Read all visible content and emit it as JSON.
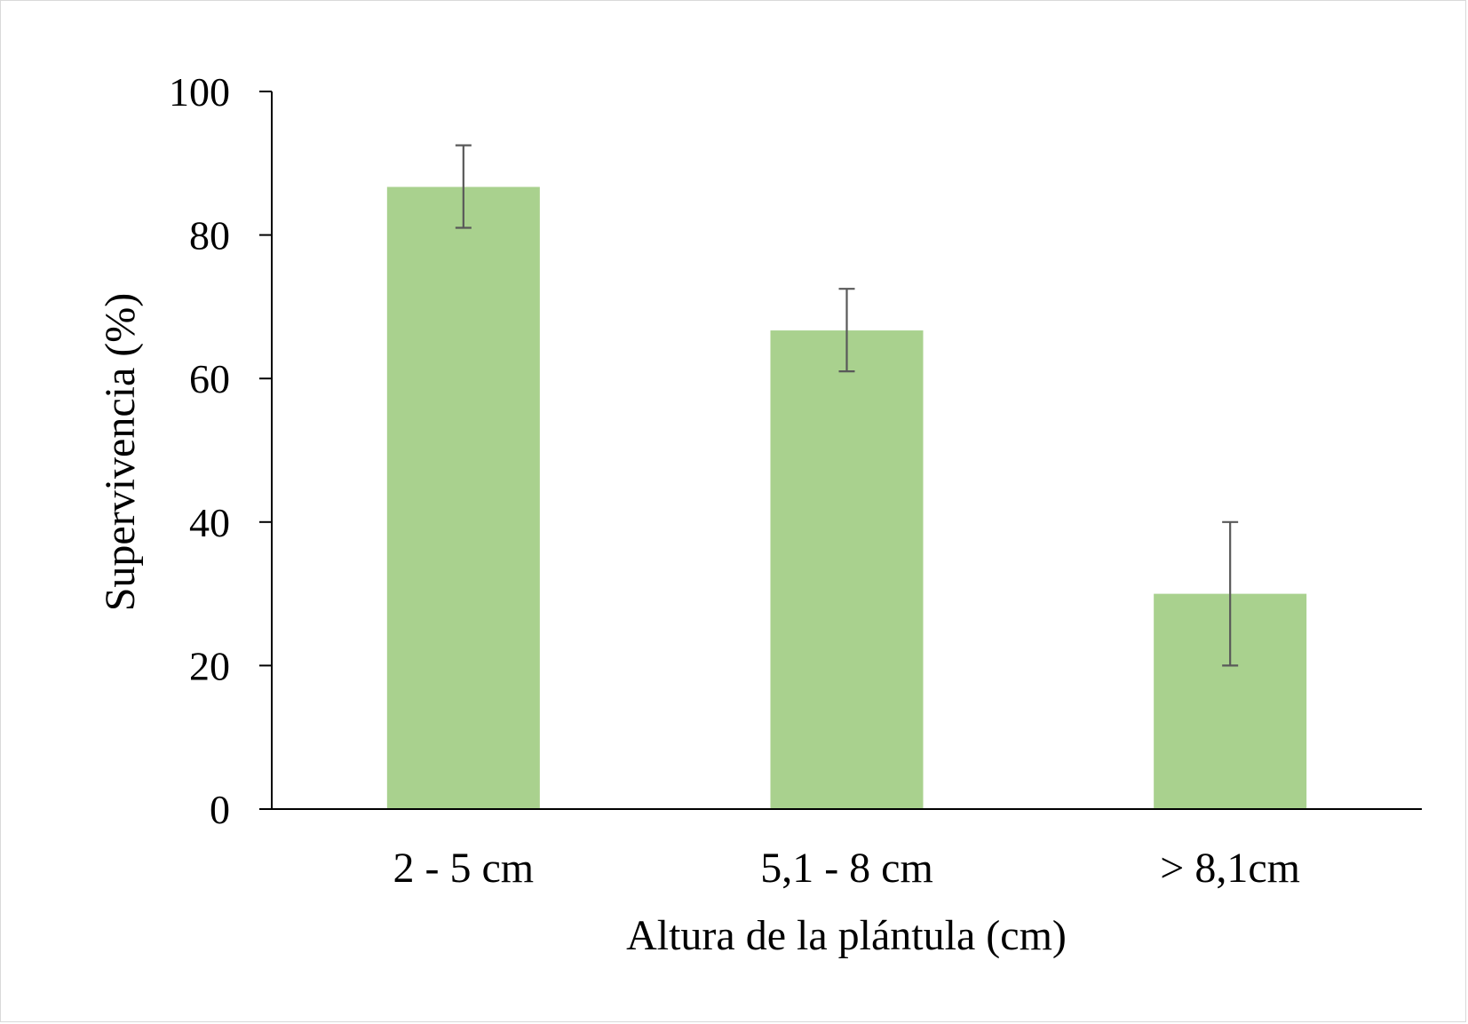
{
  "chart_data": {
    "type": "bar",
    "categories": [
      "2 - 5 cm",
      "5,1 - 8 cm",
      "> 8,1cm"
    ],
    "values": [
      86.7,
      66.7,
      30.0
    ],
    "error_bars": [
      {
        "low": 81.0,
        "high": 92.5
      },
      {
        "low": 61.0,
        "high": 72.5
      },
      {
        "low": 20.0,
        "high": 40.0
      }
    ],
    "xlabel": "Altura de la plántula (cm)",
    "ylabel": "Supervivencia (%)",
    "ylim": [
      0,
      100
    ],
    "yticks": [
      "0",
      "20",
      "40",
      "60",
      "80",
      "100"
    ],
    "grid": false,
    "legend": "none",
    "colors": {
      "bar": "#a9d18e",
      "error_bar": "#595959",
      "axis": "#000000"
    }
  }
}
